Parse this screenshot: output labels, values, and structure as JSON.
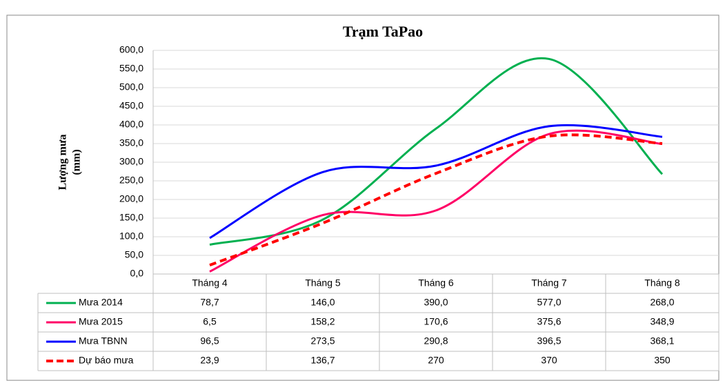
{
  "chart_data": {
    "type": "line",
    "title": "Trạm TaPao",
    "ylabel": [
      "Lượng mưa",
      "(mm)"
    ],
    "categories": [
      "Tháng 4",
      "Tháng 5",
      "Tháng 6",
      "Tháng 7",
      "Tháng 8"
    ],
    "ylim": [
      0,
      600
    ],
    "yticks": [
      {
        "value": 0,
        "label": "0,0"
      },
      {
        "value": 50,
        "label": "50,0"
      },
      {
        "value": 100,
        "label": "100,0"
      },
      {
        "value": 150,
        "label": "150,0"
      },
      {
        "value": 200,
        "label": "200,0"
      },
      {
        "value": 250,
        "label": "250,0"
      },
      {
        "value": 300,
        "label": "300,0"
      },
      {
        "value": 350,
        "label": "350,0"
      },
      {
        "value": 400,
        "label": "400,0"
      },
      {
        "value": 450,
        "label": "450,0"
      },
      {
        "value": 500,
        "label": "500,0"
      },
      {
        "value": 550,
        "label": "550,0"
      },
      {
        "value": 600,
        "label": "600,0"
      }
    ],
    "grid": true,
    "smooth": true,
    "series": [
      {
        "name": "Mưa 2014",
        "color": "#00b050",
        "dashed": false,
        "values": [
          78.7,
          146.0,
          390.0,
          577.0,
          268.0
        ],
        "value_labels": [
          "78,7",
          "146,0",
          "390,0",
          "577,0",
          "268,0"
        ]
      },
      {
        "name": "Mưa 2015",
        "color": "#ff0066",
        "dashed": false,
        "values": [
          6.5,
          158.2,
          170.6,
          375.6,
          348.9
        ],
        "value_labels": [
          "6,5",
          "158,2",
          "170,6",
          "375,6",
          "348,9"
        ]
      },
      {
        "name": "Mưa TBNN",
        "color": "#0000ff",
        "dashed": false,
        "values": [
          96.5,
          273.5,
          290.8,
          396.5,
          368.1
        ],
        "value_labels": [
          "96,5",
          "273,5",
          "290,8",
          "396,5",
          "368,1"
        ]
      },
      {
        "name": "Dự báo mưa",
        "color": "#ff0000",
        "dashed": true,
        "values": [
          23.9,
          136.7,
          270,
          370,
          350
        ],
        "value_labels": [
          "23,9",
          "136,7",
          "270",
          "370",
          "350"
        ]
      }
    ]
  }
}
